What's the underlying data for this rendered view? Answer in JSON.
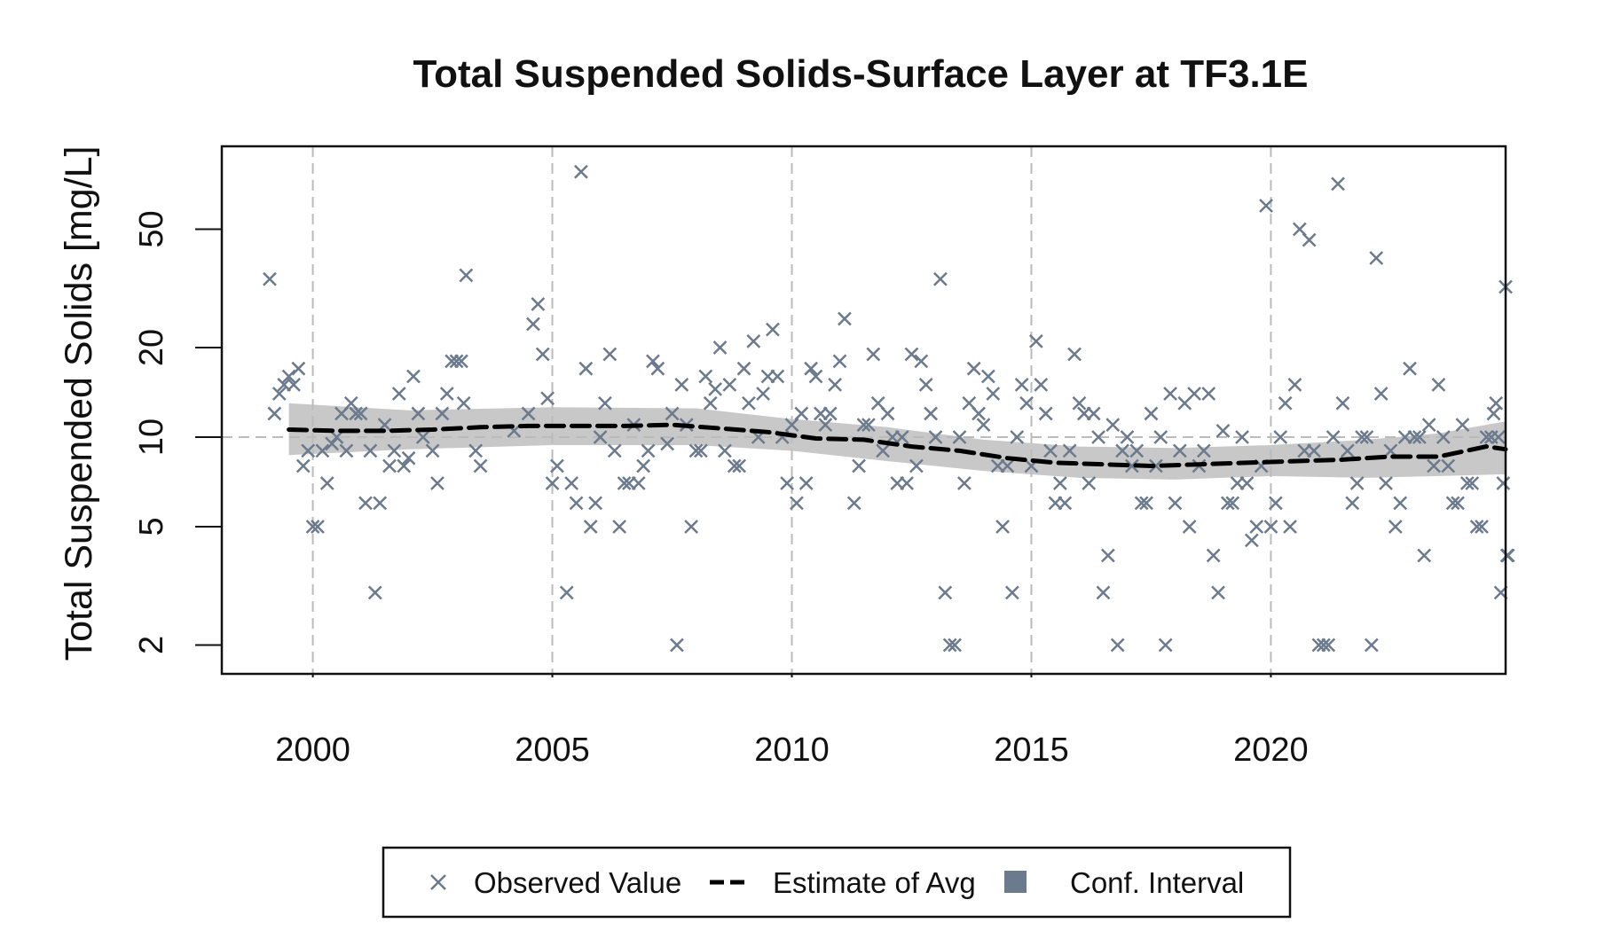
{
  "chart_data": {
    "type": "scatter",
    "title": "Total Suspended Solids-Surface Layer at TF3.1E",
    "ylabel": "Total Suspended Solids [mg/L]",
    "xlabel": "",
    "y_scale": "log",
    "xlim": [
      1998.1,
      2024.9
    ],
    "ylim": [
      1.6,
      95
    ],
    "x_ticks": [
      2000,
      2005,
      2010,
      2015,
      2020
    ],
    "x_tick_labels": [
      "2000",
      "2005",
      "2010",
      "2015",
      "2020"
    ],
    "y_ticks": [
      2,
      5,
      10,
      20,
      50
    ],
    "y_tick_labels": [
      "2",
      "5",
      "10",
      "20",
      "50"
    ],
    "reference_line_y": 10,
    "grid": "vertical dashed at x ticks",
    "legend_position": "bottom",
    "colors": {
      "observed": "#6b7a8c",
      "estimate": "#000000",
      "confidence": "#c8c8c8",
      "legend_conf_swatch": "#6b7a8c",
      "grid": "#bbbbbb"
    },
    "series": [
      {
        "name": "Observed Value",
        "type": "scatter",
        "points": [
          [
            1999.1,
            34
          ],
          [
            1999.2,
            12
          ],
          [
            1999.3,
            14
          ],
          [
            1999.4,
            15
          ],
          [
            1999.5,
            16
          ],
          [
            1999.6,
            15
          ],
          [
            1999.7,
            17
          ],
          [
            1999.8,
            8
          ],
          [
            1999.9,
            9
          ],
          [
            2000.0,
            5
          ],
          [
            2000.1,
            5
          ],
          [
            2000.2,
            9
          ],
          [
            2000.3,
            7
          ],
          [
            2000.4,
            9.5
          ],
          [
            2000.5,
            10
          ],
          [
            2000.6,
            12
          ],
          [
            2000.7,
            9
          ],
          [
            2000.8,
            13
          ],
          [
            2000.9,
            12
          ],
          [
            2001.0,
            12
          ],
          [
            2001.1,
            6
          ],
          [
            2001.2,
            9
          ],
          [
            2001.3,
            3
          ],
          [
            2001.4,
            6
          ],
          [
            2001.5,
            11
          ],
          [
            2001.6,
            8
          ],
          [
            2001.7,
            9
          ],
          [
            2001.8,
            14
          ],
          [
            2001.9,
            8
          ],
          [
            2002.0,
            8.5
          ],
          [
            2002.1,
            16
          ],
          [
            2002.2,
            12
          ],
          [
            2002.3,
            10
          ],
          [
            2002.5,
            9
          ],
          [
            2002.6,
            7
          ],
          [
            2002.7,
            12
          ],
          [
            2002.8,
            14
          ],
          [
            2002.9,
            18
          ],
          [
            2003.0,
            18
          ],
          [
            2003.1,
            18
          ],
          [
            2003.15,
            13
          ],
          [
            2003.2,
            35
          ],
          [
            2003.4,
            9
          ],
          [
            2003.5,
            8
          ],
          [
            2004.2,
            10.5
          ],
          [
            2004.5,
            12
          ],
          [
            2004.6,
            24
          ],
          [
            2004.7,
            28
          ],
          [
            2004.8,
            19
          ],
          [
            2004.9,
            13.5
          ],
          [
            2005.0,
            7
          ],
          [
            2005.1,
            8
          ],
          [
            2005.3,
            3
          ],
          [
            2005.4,
            7
          ],
          [
            2005.5,
            6
          ],
          [
            2005.6,
            78
          ],
          [
            2005.7,
            17
          ],
          [
            2005.8,
            5
          ],
          [
            2005.9,
            6
          ],
          [
            2006.0,
            10
          ],
          [
            2006.1,
            13
          ],
          [
            2006.2,
            19
          ],
          [
            2006.3,
            9
          ],
          [
            2006.4,
            5
          ],
          [
            2006.5,
            7
          ],
          [
            2006.6,
            7
          ],
          [
            2006.7,
            11
          ],
          [
            2006.8,
            7
          ],
          [
            2006.9,
            8
          ],
          [
            2007.0,
            9
          ],
          [
            2007.1,
            18
          ],
          [
            2007.2,
            17
          ],
          [
            2007.4,
            9.5
          ],
          [
            2007.5,
            12
          ],
          [
            2007.6,
            2
          ],
          [
            2007.7,
            15
          ],
          [
            2007.8,
            11
          ],
          [
            2007.9,
            5
          ],
          [
            2008.0,
            9
          ],
          [
            2008.1,
            9
          ],
          [
            2008.2,
            16
          ],
          [
            2008.3,
            13
          ],
          [
            2008.4,
            14.5
          ],
          [
            2008.5,
            20
          ],
          [
            2008.6,
            9
          ],
          [
            2008.7,
            15
          ],
          [
            2008.8,
            8
          ],
          [
            2008.9,
            8
          ],
          [
            2009.0,
            17
          ],
          [
            2009.1,
            13
          ],
          [
            2009.2,
            21
          ],
          [
            2009.3,
            10
          ],
          [
            2009.4,
            14
          ],
          [
            2009.5,
            16
          ],
          [
            2009.6,
            23
          ],
          [
            2009.7,
            16
          ],
          [
            2009.8,
            10
          ],
          [
            2009.9,
            7
          ],
          [
            2010.0,
            11
          ],
          [
            2010.1,
            6
          ],
          [
            2010.2,
            12
          ],
          [
            2010.3,
            7
          ],
          [
            2010.4,
            17
          ],
          [
            2010.5,
            16
          ],
          [
            2010.6,
            12
          ],
          [
            2010.7,
            11
          ],
          [
            2010.8,
            12
          ],
          [
            2010.9,
            15
          ],
          [
            2011.0,
            18
          ],
          [
            2011.1,
            25
          ],
          [
            2011.3,
            6
          ],
          [
            2011.4,
            8
          ],
          [
            2011.5,
            11
          ],
          [
            2011.6,
            11
          ],
          [
            2011.7,
            19
          ],
          [
            2011.8,
            13
          ],
          [
            2011.9,
            9
          ],
          [
            2012.0,
            12
          ],
          [
            2012.1,
            10
          ],
          [
            2012.2,
            7
          ],
          [
            2012.3,
            10
          ],
          [
            2012.4,
            7
          ],
          [
            2012.5,
            19
          ],
          [
            2012.6,
            8
          ],
          [
            2012.7,
            18
          ],
          [
            2012.8,
            15
          ],
          [
            2012.9,
            12
          ],
          [
            2013.0,
            10
          ],
          [
            2013.1,
            34
          ],
          [
            2013.2,
            3
          ],
          [
            2013.3,
            2
          ],
          [
            2013.4,
            2
          ],
          [
            2013.5,
            10
          ],
          [
            2013.6,
            7
          ],
          [
            2013.7,
            13
          ],
          [
            2013.8,
            17
          ],
          [
            2013.9,
            12
          ],
          [
            2014.0,
            11
          ],
          [
            2014.1,
            16
          ],
          [
            2014.2,
            14
          ],
          [
            2014.3,
            8
          ],
          [
            2014.4,
            5
          ],
          [
            2014.5,
            8
          ],
          [
            2014.6,
            3
          ],
          [
            2014.7,
            10
          ],
          [
            2014.8,
            15
          ],
          [
            2014.9,
            13
          ],
          [
            2015.0,
            8
          ],
          [
            2015.1,
            21
          ],
          [
            2015.2,
            15
          ],
          [
            2015.3,
            12
          ],
          [
            2015.4,
            9
          ],
          [
            2015.5,
            6
          ],
          [
            2015.6,
            7
          ],
          [
            2015.7,
            6
          ],
          [
            2015.8,
            9
          ],
          [
            2015.9,
            19
          ],
          [
            2016.0,
            13
          ],
          [
            2016.1,
            12
          ],
          [
            2016.2,
            7
          ],
          [
            2016.3,
            12
          ],
          [
            2016.4,
            10
          ],
          [
            2016.5,
            3
          ],
          [
            2016.6,
            4
          ],
          [
            2016.7,
            11
          ],
          [
            2016.8,
            2
          ],
          [
            2016.9,
            9
          ],
          [
            2017.0,
            10
          ],
          [
            2017.1,
            8
          ],
          [
            2017.2,
            9
          ],
          [
            2017.3,
            6
          ],
          [
            2017.4,
            6
          ],
          [
            2017.5,
            12
          ],
          [
            2017.6,
            8
          ],
          [
            2017.7,
            10
          ],
          [
            2017.8,
            2
          ],
          [
            2017.9,
            14
          ],
          [
            2018.0,
            6
          ],
          [
            2018.1,
            9
          ],
          [
            2018.2,
            13
          ],
          [
            2018.3,
            5
          ],
          [
            2018.4,
            14
          ],
          [
            2018.5,
            8
          ],
          [
            2018.6,
            9
          ],
          [
            2018.7,
            14
          ],
          [
            2018.8,
            4
          ],
          [
            2018.9,
            3
          ],
          [
            2019.0,
            10.5
          ],
          [
            2019.1,
            6
          ],
          [
            2019.2,
            6
          ],
          [
            2019.3,
            7
          ],
          [
            2019.4,
            10
          ],
          [
            2019.5,
            7
          ],
          [
            2019.6,
            4.5
          ],
          [
            2019.7,
            5
          ],
          [
            2019.8,
            8
          ],
          [
            2019.9,
            60
          ],
          [
            2020.0,
            5
          ],
          [
            2020.1,
            6
          ],
          [
            2020.2,
            10
          ],
          [
            2020.3,
            13
          ],
          [
            2020.4,
            5
          ],
          [
            2020.5,
            15
          ],
          [
            2020.6,
            50
          ],
          [
            2020.7,
            9
          ],
          [
            2020.8,
            46
          ],
          [
            2020.9,
            9
          ],
          [
            2021.0,
            2
          ],
          [
            2021.1,
            2
          ],
          [
            2021.2,
            2
          ],
          [
            2021.3,
            10
          ],
          [
            2021.4,
            71
          ],
          [
            2021.5,
            13
          ],
          [
            2021.6,
            9
          ],
          [
            2021.7,
            6
          ],
          [
            2021.8,
            7
          ],
          [
            2021.9,
            10
          ],
          [
            2022.0,
            10
          ],
          [
            2022.1,
            2
          ],
          [
            2022.2,
            40
          ],
          [
            2022.3,
            14
          ],
          [
            2022.4,
            7
          ],
          [
            2022.5,
            9
          ],
          [
            2022.6,
            5
          ],
          [
            2022.7,
            6
          ],
          [
            2022.8,
            10
          ],
          [
            2022.9,
            17
          ],
          [
            2023.0,
            10
          ],
          [
            2023.1,
            10
          ],
          [
            2023.2,
            4
          ],
          [
            2023.3,
            11
          ],
          [
            2023.4,
            8
          ],
          [
            2023.5,
            15
          ],
          [
            2023.6,
            10
          ],
          [
            2023.7,
            8
          ],
          [
            2023.8,
            6
          ],
          [
            2023.9,
            6
          ],
          [
            2024.0,
            11
          ],
          [
            2024.1,
            7
          ],
          [
            2024.2,
            7
          ],
          [
            2024.3,
            5
          ],
          [
            2024.4,
            5
          ],
          [
            2024.5,
            10
          ],
          [
            2024.6,
            10
          ],
          [
            2024.65,
            12
          ],
          [
            2024.7,
            13
          ],
          [
            2024.75,
            10
          ],
          [
            2024.8,
            3
          ],
          [
            2024.85,
            7
          ],
          [
            2024.9,
            32
          ],
          [
            2024.93,
            4
          ],
          [
            2024.95,
            4
          ]
        ]
      },
      {
        "name": "Estimate of Avg",
        "type": "line",
        "points": [
          [
            1999.5,
            10.6
          ],
          [
            2000.5,
            10.5
          ],
          [
            2001.5,
            10.5
          ],
          [
            2002.5,
            10.6
          ],
          [
            2003.5,
            10.8
          ],
          [
            2004.5,
            10.9
          ],
          [
            2005.5,
            10.9
          ],
          [
            2006.5,
            10.9
          ],
          [
            2007.5,
            11.0
          ],
          [
            2008.5,
            10.7
          ],
          [
            2009.5,
            10.4
          ],
          [
            2010.5,
            9.9
          ],
          [
            2011.5,
            9.8
          ],
          [
            2012.5,
            9.3
          ],
          [
            2013.5,
            9.0
          ],
          [
            2014.5,
            8.5
          ],
          [
            2015.5,
            8.2
          ],
          [
            2016.5,
            8.1
          ],
          [
            2017.5,
            8.0
          ],
          [
            2018.5,
            8.1
          ],
          [
            2019.5,
            8.2
          ],
          [
            2020.5,
            8.3
          ],
          [
            2021.5,
            8.4
          ],
          [
            2022.5,
            8.6
          ],
          [
            2023.5,
            8.6
          ],
          [
            2024.5,
            9.3
          ],
          [
            2024.9,
            9.1
          ]
        ]
      },
      {
        "name": "Conf. Interval",
        "type": "band",
        "lower": [
          [
            1999.5,
            8.7
          ],
          [
            2002.0,
            9.1
          ],
          [
            2005.0,
            9.4
          ],
          [
            2008.0,
            9.4
          ],
          [
            2010.0,
            9.0
          ],
          [
            2012.0,
            8.3
          ],
          [
            2014.0,
            7.7
          ],
          [
            2016.0,
            7.3
          ],
          [
            2018.0,
            7.2
          ],
          [
            2020.0,
            7.4
          ],
          [
            2022.0,
            7.3
          ],
          [
            2023.5,
            7.4
          ],
          [
            2024.9,
            7.5
          ]
        ],
        "upper": [
          [
            1999.5,
            13.0
          ],
          [
            2002.0,
            12.3
          ],
          [
            2005.0,
            12.6
          ],
          [
            2008.0,
            12.5
          ],
          [
            2010.0,
            11.5
          ],
          [
            2012.0,
            10.8
          ],
          [
            2014.0,
            9.8
          ],
          [
            2016.0,
            9.3
          ],
          [
            2018.0,
            9.2
          ],
          [
            2020.0,
            9.4
          ],
          [
            2022.0,
            9.8
          ],
          [
            2023.5,
            10.3
          ],
          [
            2024.9,
            11.3
          ]
        ]
      }
    ],
    "legend": [
      {
        "label": "Observed Value",
        "symbol": "cross"
      },
      {
        "label": "Estimate of Avg",
        "symbol": "dashed-line"
      },
      {
        "label": "Conf. Interval",
        "symbol": "square"
      }
    ]
  }
}
